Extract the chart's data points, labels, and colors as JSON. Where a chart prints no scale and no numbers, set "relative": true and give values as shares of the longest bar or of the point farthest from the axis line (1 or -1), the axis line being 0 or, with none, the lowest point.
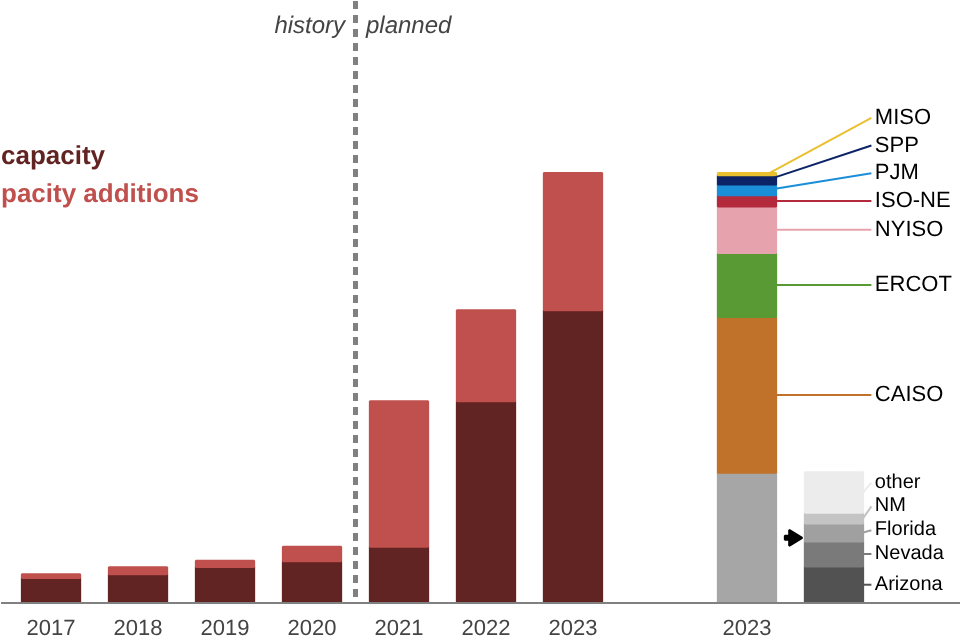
{
  "chart_data": {
    "type": "bar",
    "stacked": true,
    "relative": true,
    "legend": "right",
    "categories": [
      "2017",
      "2018",
      "2019",
      "2020",
      "2021",
      "2022",
      "2023",
      null,
      "2023",
      null
    ],
    "series": [
      {
        "name": "capacity",
        "color": "#622323",
        "values": [
          0.058,
          0.067,
          0.084,
          0.097,
          0.131,
          0.469,
          0.681,
          null,
          null,
          null
        ]
      },
      {
        "name": "pacity additions",
        "color": "#c0504d",
        "values": [
          0.009,
          0.016,
          0.014,
          0.034,
          0.338,
          0.212,
          0.319,
          null,
          null,
          null
        ]
      },
      {
        "color": "#a6a6a6",
        "values": [
          null,
          null,
          null,
          null,
          null,
          null,
          null,
          null,
          0.303,
          null
        ]
      },
      {
        "name": "CAISO",
        "color": "#c0722a",
        "values": [
          null,
          null,
          null,
          null,
          null,
          null,
          null,
          null,
          0.362,
          null
        ]
      },
      {
        "name": "ERCOT",
        "color": "#5a9a35",
        "values": [
          null,
          null,
          null,
          null,
          null,
          null,
          null,
          null,
          0.149,
          null
        ]
      },
      {
        "name": "NYISO",
        "color": "#e6a3ad",
        "values": [
          null,
          null,
          null,
          null,
          null,
          null,
          null,
          null,
          0.108,
          null
        ]
      },
      {
        "name": "ISO-NE",
        "color": "#b32a3c",
        "values": [
          null,
          null,
          null,
          null,
          null,
          null,
          null,
          null,
          0.026,
          null
        ]
      },
      {
        "name": "PJM",
        "color": "#1a8fd8",
        "values": [
          null,
          null,
          null,
          null,
          null,
          null,
          null,
          null,
          0.025,
          null
        ]
      },
      {
        "name": "SPP",
        "color": "#0c2366",
        "values": [
          null,
          null,
          null,
          null,
          null,
          null,
          null,
          null,
          0.022,
          null
        ]
      },
      {
        "name": "MISO",
        "color": "#e8c030",
        "values": [
          null,
          null,
          null,
          null,
          null,
          null,
          null,
          null,
          0.005,
          null
        ]
      },
      {
        "name": "Arizona",
        "color": "#525252",
        "values": [
          null,
          null,
          null,
          null,
          null,
          null,
          null,
          null,
          null,
          0.085
        ]
      },
      {
        "name": "Nevada",
        "color": "#7a7a7a",
        "values": [
          null,
          null,
          null,
          null,
          null,
          null,
          null,
          null,
          null,
          0.058
        ]
      },
      {
        "name": "Florida",
        "color": "#a0a0a0",
        "values": [
          null,
          null,
          null,
          null,
          null,
          null,
          null,
          null,
          null,
          0.042
        ]
      },
      {
        "name": "NM",
        "color": "#c4c4c4",
        "values": [
          null,
          null,
          null,
          null,
          null,
          null,
          null,
          null,
          null,
          0.025
        ]
      },
      {
        "name": "other",
        "color": "#ececec",
        "values": [
          null,
          null,
          null,
          null,
          null,
          null,
          null,
          null,
          null,
          0.094
        ]
      }
    ],
    "annotations": [
      "history",
      "planned"
    ]
  }
}
